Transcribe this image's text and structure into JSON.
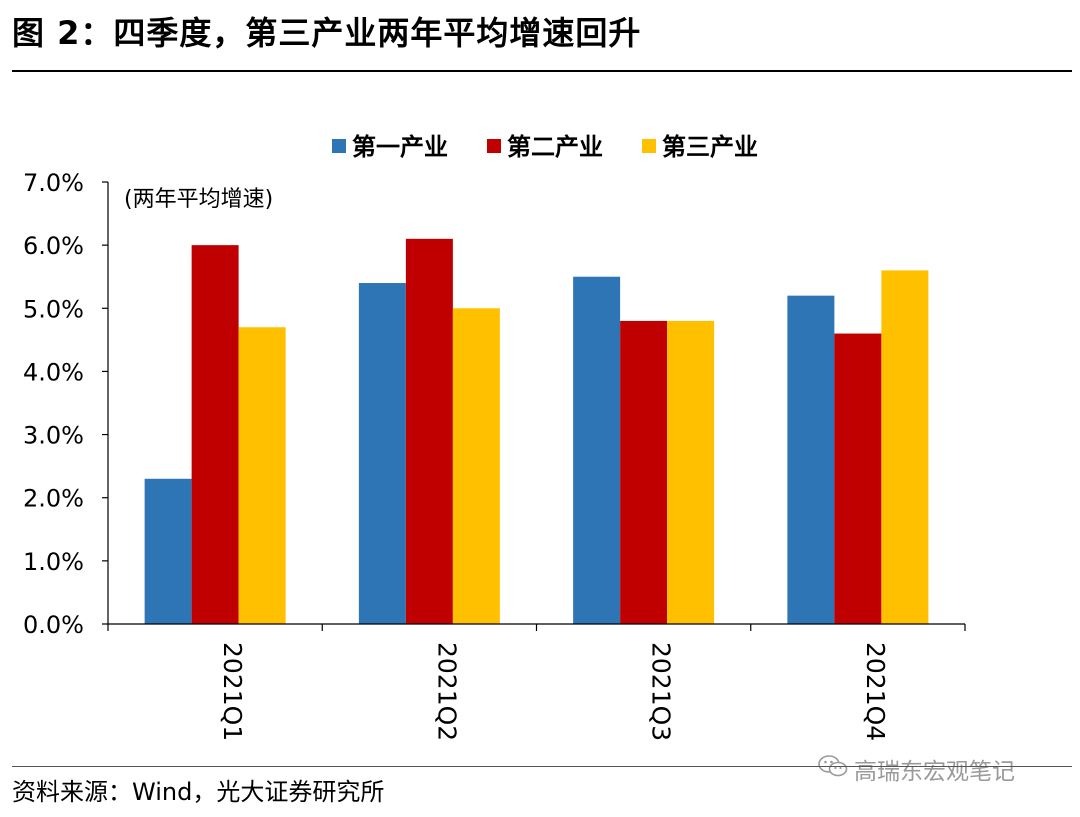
{
  "figure": {
    "title": "图 2：四季度，第三产业两年平均增速回升",
    "source": "资料来源：Wind，光大证券研究所",
    "watermark": "高瑞东宏观笔记"
  },
  "colors": {
    "primary": "#2E75B6",
    "secondary": "#C00000",
    "tertiary": "#FFC000"
  },
  "chart_data": {
    "type": "bar",
    "title": "",
    "annotation": "(两年平均增速)",
    "categories": [
      "2021Q1",
      "2021Q2",
      "2021Q3",
      "2021Q4"
    ],
    "series": [
      {
        "name": "第一产业",
        "color": "#2E75B6",
        "values": [
          2.3,
          5.4,
          5.5,
          5.2
        ]
      },
      {
        "name": "第二产业",
        "color": "#C00000",
        "values": [
          6.0,
          6.1,
          4.8,
          4.6
        ]
      },
      {
        "name": "第三产业",
        "color": "#FFC000",
        "values": [
          4.7,
          5.0,
          4.8,
          5.6
        ]
      }
    ],
    "ylim": [
      0,
      7
    ],
    "yticks": [
      "0.0%",
      "1.0%",
      "2.0%",
      "3.0%",
      "4.0%",
      "5.0%",
      "6.0%",
      "7.0%"
    ],
    "xlabel": "",
    "ylabel": "",
    "grid": false,
    "legend": "top-center"
  }
}
